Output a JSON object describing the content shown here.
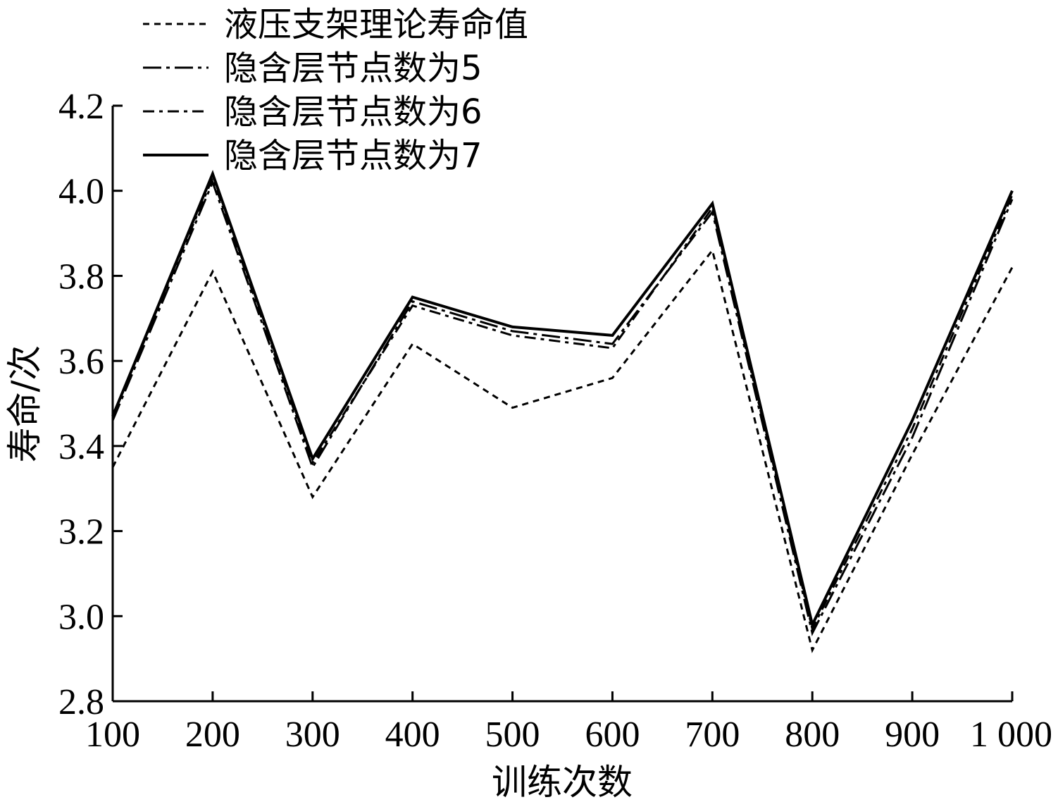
{
  "chart_data": {
    "type": "line",
    "title": "",
    "xlabel": "训练次数",
    "ylabel": "寿命/次",
    "x": [
      100,
      200,
      300,
      400,
      500,
      600,
      700,
      800,
      900,
      1000
    ],
    "x_tick_labels": [
      "100",
      "200",
      "300",
      "400",
      "500",
      "600",
      "700",
      "800",
      "900",
      "1 000"
    ],
    "ylim": [
      2.8,
      4.2
    ],
    "y_ticks": [
      2.8,
      3.0,
      3.2,
      3.4,
      3.6,
      3.8,
      4.0,
      4.2
    ],
    "y_tick_labels": [
      "2.8",
      "3.0",
      "3.2",
      "3.4",
      "3.6",
      "3.8",
      "4.0",
      "4.2"
    ],
    "grid": false,
    "legend_position": "top-left",
    "series": [
      {
        "name": "液压支架理论寿命值",
        "style": "dotted",
        "values": [
          3.35,
          3.81,
          3.28,
          3.64,
          3.49,
          3.56,
          3.86,
          2.92,
          3.38,
          3.82
        ]
      },
      {
        "name": "隐含层节点数为5",
        "style": "long-dash-dot",
        "values": [
          3.46,
          4.02,
          3.35,
          3.74,
          3.67,
          3.64,
          3.95,
          2.96,
          3.42,
          3.98
        ]
      },
      {
        "name": "隐含层节点数为6",
        "style": "dash-dot",
        "values": [
          3.47,
          4.03,
          3.36,
          3.73,
          3.66,
          3.63,
          3.96,
          2.97,
          3.44,
          3.99
        ]
      },
      {
        "name": "隐含层节点数为7",
        "style": "solid",
        "values": [
          3.47,
          4.04,
          3.37,
          3.75,
          3.68,
          3.66,
          3.97,
          2.98,
          3.46,
          4.0
        ]
      }
    ]
  }
}
